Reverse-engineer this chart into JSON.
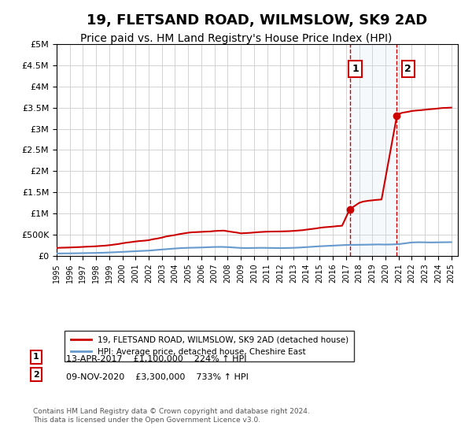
{
  "title": "19, FLETSAND ROAD, WILMSLOW, SK9 2AD",
  "subtitle": "Price paid vs. HM Land Registry's House Price Index (HPI)",
  "title_fontsize": 13,
  "subtitle_fontsize": 10,
  "ylabel_ticks": [
    "£0",
    "£500K",
    "£1M",
    "£1.5M",
    "£2M",
    "£2.5M",
    "£3M",
    "£3.5M",
    "£4M",
    "£4.5M",
    "£5M"
  ],
  "ytick_values": [
    0,
    500000,
    1000000,
    1500000,
    2000000,
    2500000,
    3000000,
    3500000,
    4000000,
    4500000,
    5000000
  ],
  "ylim": [
    0,
    5000000
  ],
  "xlim_start": 1995.0,
  "xlim_end": 2025.5,
  "hpi_color": "#6699cc",
  "price_color": "#cc0000",
  "sale1_year": 2017.283,
  "sale1_price": 1100000,
  "sale2_year": 2020.86,
  "sale2_price": 3300000,
  "shade_color": "#cce0f0",
  "dashed_color": "#cc0000",
  "legend_label1": "19, FLETSAND ROAD, WILMSLOW, SK9 2AD (detached house)",
  "legend_label2": "HPI: Average price, detached house, Cheshire East",
  "annotation1_label": "1",
  "annotation1_date": "13-APR-2017",
  "annotation1_price": "£1,100,000",
  "annotation1_hpi": "224% ↑ HPI",
  "annotation2_label": "2",
  "annotation2_date": "09-NOV-2020",
  "annotation2_price": "£3,300,000",
  "annotation2_hpi": "733% ↑ HPI",
  "footer": "Contains HM Land Registry data © Crown copyright and database right 2024.\nThis data is licensed under the Open Government Licence v3.0.",
  "hpi_data_years": [
    1995,
    1995.5,
    1996,
    1996.5,
    1997,
    1997.5,
    1998,
    1998.5,
    1999,
    1999.5,
    2000,
    2000.5,
    2001,
    2001.5,
    2002,
    2002.5,
    2003,
    2003.5,
    2004,
    2004.5,
    2005,
    2005.5,
    2006,
    2006.5,
    2007,
    2007.5,
    2008,
    2008.5,
    2009,
    2009.5,
    2010,
    2010.5,
    2011,
    2011.5,
    2012,
    2012.5,
    2013,
    2013.5,
    2014,
    2014.5,
    2015,
    2015.5,
    2016,
    2016.5,
    2017,
    2017.5,
    2018,
    2018.5,
    2019,
    2019.5,
    2020,
    2020.5,
    2021,
    2021.5,
    2022,
    2022.5,
    2023,
    2023.5,
    2024,
    2024.5,
    2025
  ],
  "hpi_values": [
    55000,
    56000,
    57000,
    59000,
    62000,
    65000,
    68000,
    72000,
    78000,
    85000,
    92000,
    100000,
    108000,
    115000,
    122000,
    135000,
    148000,
    160000,
    172000,
    182000,
    188000,
    192000,
    196000,
    202000,
    208000,
    210000,
    205000,
    195000,
    185000,
    182000,
    185000,
    188000,
    186000,
    184000,
    182000,
    184000,
    188000,
    195000,
    205000,
    215000,
    225000,
    232000,
    240000,
    248000,
    255000,
    258000,
    260000,
    262000,
    265000,
    268000,
    265000,
    268000,
    275000,
    295000,
    315000,
    320000,
    318000,
    315000,
    318000,
    320000,
    322000
  ],
  "price_data_years": [
    1995,
    1995.3,
    1995.7,
    1996,
    1996.3,
    1996.7,
    1997,
    1997.3,
    1997.7,
    1998,
    1998.3,
    1998.7,
    1999,
    1999.3,
    1999.7,
    2000,
    2000.3,
    2000.7,
    2001,
    2001.3,
    2001.7,
    2002,
    2002.3,
    2002.7,
    2003,
    2003.3,
    2003.7,
    2004,
    2004.3,
    2004.7,
    2005,
    2005.3,
    2005.7,
    2006,
    2006.3,
    2006.7,
    2007,
    2007.3,
    2007.7,
    2008,
    2008.3,
    2008.7,
    2009,
    2009.3,
    2009.7,
    2010,
    2010.3,
    2010.7,
    2011,
    2011.3,
    2011.7,
    2012,
    2012.3,
    2012.7,
    2013,
    2013.3,
    2013.7,
    2014,
    2014.3,
    2014.7,
    2015,
    2015.3,
    2015.7,
    2016,
    2016.3,
    2016.7,
    2017.283,
    2018,
    2018.3,
    2018.7,
    2019,
    2019.3,
    2019.7,
    2020.86,
    2021,
    2021.3,
    2021.7,
    2022,
    2022.3,
    2022.7,
    2023,
    2023.3,
    2023.7,
    2024,
    2024.3,
    2024.7,
    2025
  ],
  "price_values": [
    185000,
    190000,
    193000,
    196000,
    200000,
    205000,
    210000,
    215000,
    220000,
    225000,
    232000,
    240000,
    250000,
    262000,
    278000,
    295000,
    310000,
    325000,
    338000,
    348000,
    358000,
    368000,
    390000,
    410000,
    430000,
    455000,
    475000,
    490000,
    510000,
    530000,
    545000,
    555000,
    560000,
    565000,
    570000,
    575000,
    585000,
    590000,
    595000,
    580000,
    565000,
    548000,
    530000,
    535000,
    542000,
    550000,
    558000,
    565000,
    570000,
    572000,
    574000,
    575000,
    578000,
    582000,
    588000,
    595000,
    605000,
    618000,
    630000,
    645000,
    660000,
    672000,
    682000,
    690000,
    700000,
    710000,
    1100000,
    1250000,
    1280000,
    1300000,
    1310000,
    1320000,
    1330000,
    3300000,
    3350000,
    3380000,
    3400000,
    3420000,
    3430000,
    3440000,
    3450000,
    3460000,
    3470000,
    3480000,
    3490000,
    3495000,
    3500000
  ]
}
